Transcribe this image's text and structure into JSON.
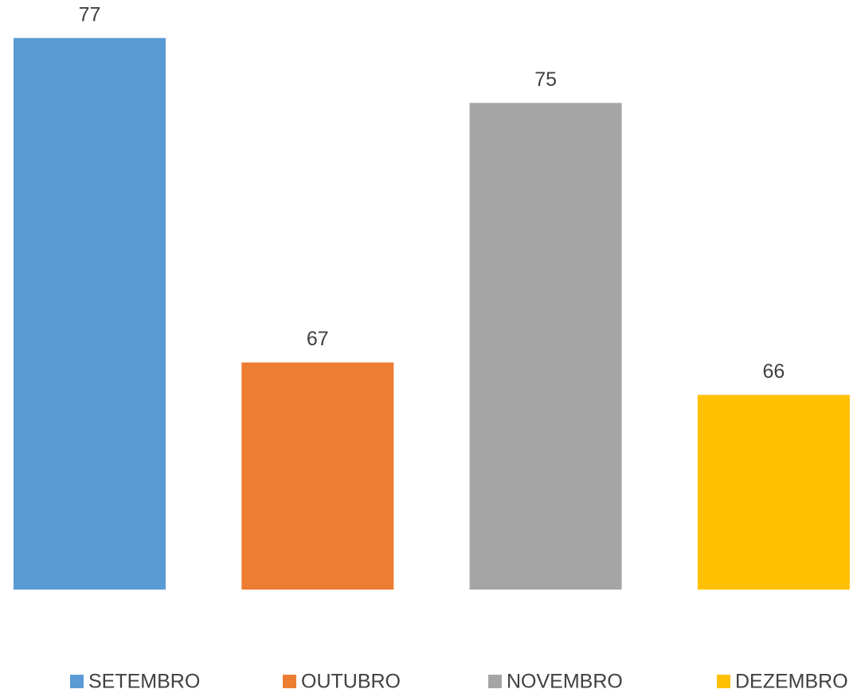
{
  "chart_data": {
    "type": "bar",
    "categories": [
      null
    ],
    "series": [
      {
        "name": "SETEMBRO",
        "color": "#5b9bd5",
        "values": [
          77
        ]
      },
      {
        "name": "OUTUBRO",
        "color": "#ed7d31",
        "values": [
          67
        ]
      },
      {
        "name": "NOVEMBRO",
        "color": "#a5a5a5",
        "values": [
          75
        ]
      },
      {
        "name": "DEZEMBRO",
        "color": "#ffc000",
        "values": [
          66
        ]
      }
    ],
    "ylim": [
      60,
      78
    ],
    "grid": false,
    "legend": "bottom"
  }
}
